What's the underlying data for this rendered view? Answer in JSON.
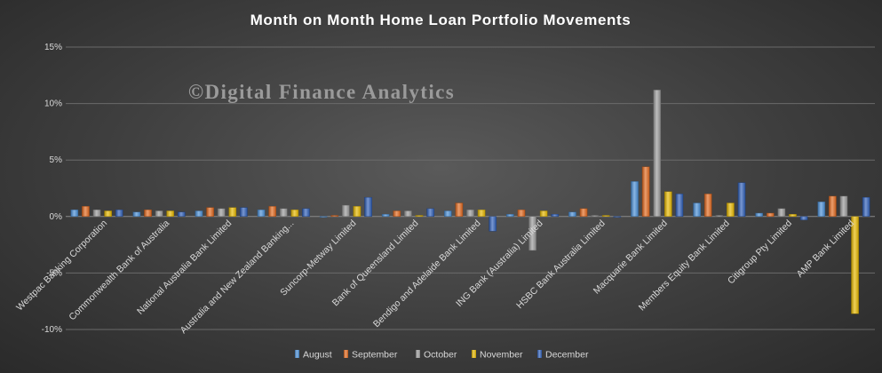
{
  "chart_data": {
    "type": "bar",
    "title": "Month on Month Home Loan Portfolio Movements",
    "watermark": "©Digital Finance Analytics",
    "xlabel": "",
    "ylabel": "",
    "ylim": [
      -10,
      15
    ],
    "y_ticks": [
      {
        "value": 15,
        "label": "15%"
      },
      {
        "value": 10,
        "label": "10%"
      },
      {
        "value": 5,
        "label": "5%"
      },
      {
        "value": 0,
        "label": "0%"
      },
      {
        "value": -5,
        "label": "-5%"
      },
      {
        "value": -10,
        "label": "-10%"
      }
    ],
    "grid": true,
    "legend_position": "bottom",
    "categories": [
      "Westpac Banking Corporation",
      "Commonwealth Bank of Australia",
      "National Australia Bank Limited",
      "Australia and New Zealand Banking...",
      "Suncorp-Metway Limited",
      "Bank of Queensland Limited",
      "Bendigo and Adelaide Bank Limited",
      "ING Bank (Australia) Limited",
      "HSBC Bank Australia Limited",
      "Macquarie Bank Limited",
      "Members Equity Bank Limited",
      "Citigroup Pty Limited",
      "AMP Bank Limited"
    ],
    "series": [
      {
        "name": "August",
        "color": "#4a8fd6",
        "values": [
          0.6,
          0.4,
          0.5,
          0.6,
          0.0,
          0.2,
          0.5,
          0.2,
          0.4,
          3.1,
          1.2,
          0.3,
          1.3
        ]
      },
      {
        "name": "September",
        "color": "#e2691f",
        "values": [
          0.9,
          0.6,
          0.8,
          0.9,
          0.1,
          0.5,
          1.2,
          0.6,
          0.7,
          4.4,
          2.0,
          0.3,
          1.8
        ]
      },
      {
        "name": "October",
        "color": "#9a9a9a",
        "values": [
          0.6,
          0.5,
          0.7,
          0.7,
          1.0,
          0.5,
          0.6,
          -3.0,
          0.1,
          11.2,
          0.1,
          0.7,
          1.8
        ]
      },
      {
        "name": "November",
        "color": "#e6b800",
        "values": [
          0.5,
          0.5,
          0.8,
          0.6,
          0.9,
          0.1,
          0.6,
          0.5,
          0.1,
          2.2,
          1.2,
          0.2,
          -8.6
        ]
      },
      {
        "name": "December",
        "color": "#2f5fb8",
        "values": [
          0.6,
          0.4,
          0.8,
          0.7,
          1.7,
          0.7,
          -1.3,
          0.2,
          0.0,
          2.0,
          3.0,
          -0.3,
          1.7
        ]
      }
    ]
  }
}
